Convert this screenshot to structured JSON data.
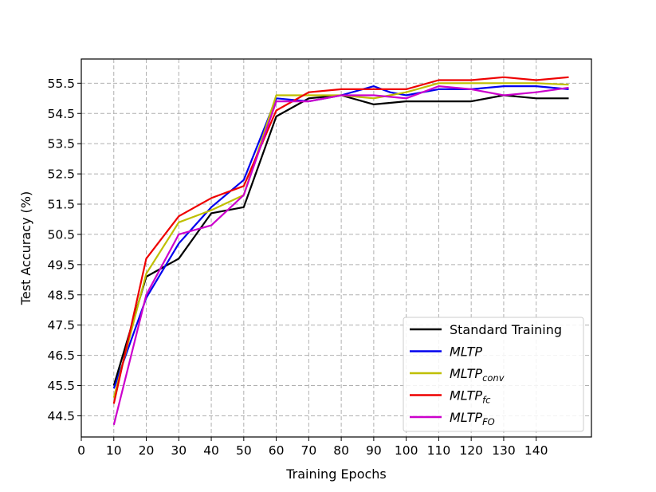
{
  "chart_data": {
    "type": "line",
    "title": "",
    "xlabel": "Training Epochs",
    "ylabel": "Test Accuracy (%)",
    "xlim": [
      0,
      157
    ],
    "ylim": [
      43.8,
      56.3
    ],
    "xticks": [
      0,
      10,
      20,
      30,
      40,
      50,
      60,
      70,
      80,
      90,
      100,
      110,
      120,
      130,
      140
    ],
    "yticks": [
      44.5,
      45.5,
      46.5,
      47.5,
      48.5,
      49.5,
      50.5,
      51.5,
      52.5,
      53.5,
      54.5,
      55.5
    ],
    "grid": true,
    "legend_position": "lower-right",
    "x": [
      10,
      20,
      30,
      40,
      50,
      60,
      70,
      80,
      90,
      95,
      100,
      110,
      120,
      130,
      140,
      150
    ],
    "series": [
      {
        "name": "Standard Training",
        "base": "Standard Training",
        "sub": "",
        "italic": false,
        "color": "#000000",
        "values": [
          45.5,
          49.1,
          49.7,
          51.2,
          51.4,
          54.4,
          55.0,
          55.1,
          54.8,
          54.85,
          54.9,
          54.9,
          54.9,
          55.1,
          55.0,
          55.0
        ]
      },
      {
        "name": "MLTP",
        "base": "MLTP",
        "sub": "",
        "italic": true,
        "color": "#0000ee",
        "values": [
          45.4,
          48.4,
          50.2,
          51.4,
          52.3,
          55.0,
          54.9,
          55.1,
          55.4,
          55.2,
          55.1,
          55.3,
          55.3,
          55.4,
          55.4,
          55.3
        ]
      },
      {
        "name": "MLTPconv",
        "base": "MLTP",
        "sub": "conv",
        "italic": true,
        "color": "#bfbf00",
        "values": [
          45.1,
          49.2,
          50.9,
          51.3,
          51.8,
          55.1,
          55.1,
          55.1,
          55.0,
          55.1,
          55.2,
          55.5,
          55.5,
          55.5,
          55.5,
          55.45
        ]
      },
      {
        "name": "MLTPfc",
        "base": "MLTP",
        "sub": "fc",
        "italic": true,
        "color": "#ee0000",
        "values": [
          44.9,
          49.7,
          51.1,
          51.7,
          52.1,
          54.6,
          55.2,
          55.3,
          55.3,
          55.3,
          55.3,
          55.6,
          55.6,
          55.7,
          55.6,
          55.7
        ]
      },
      {
        "name": "MLTPFO",
        "base": "MLTP",
        "sub": "FO",
        "italic": true,
        "color": "#cc00cc",
        "values": [
          44.2,
          48.5,
          50.5,
          50.8,
          51.8,
          54.9,
          54.9,
          55.1,
          55.1,
          55.05,
          55.0,
          55.4,
          55.3,
          55.1,
          55.2,
          55.35
        ]
      }
    ]
  }
}
